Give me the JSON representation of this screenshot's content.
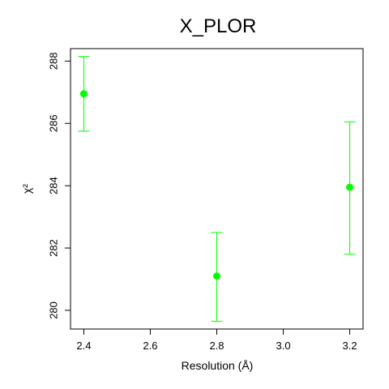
{
  "chart_data": {
    "type": "scatter",
    "title": "X_PLOR",
    "xlabel": "Resolution (Å)",
    "ylabel": "χ²",
    "xlim": [
      2.36,
      3.24
    ],
    "ylim": [
      279.4,
      288.4
    ],
    "xticks": [
      2.4,
      2.6,
      2.8,
      3.0,
      3.2
    ],
    "xtick_labels": [
      "2.4",
      "2.6",
      "2.8",
      "3.0",
      "3.2"
    ],
    "yticks": [
      280,
      282,
      284,
      286,
      288
    ],
    "ytick_labels": [
      "280",
      "282",
      "284",
      "286",
      "288"
    ],
    "grid": false,
    "series": [
      {
        "color": "#00ff00",
        "points": [
          {
            "x": 2.4,
            "y": 286.95,
            "y_low": 285.75,
            "y_high": 288.15
          },
          {
            "x": 2.8,
            "y": 281.1,
            "y_low": 279.65,
            "y_high": 282.5
          },
          {
            "x": 3.2,
            "y": 283.95,
            "y_low": 281.8,
            "y_high": 286.05
          }
        ]
      }
    ]
  }
}
